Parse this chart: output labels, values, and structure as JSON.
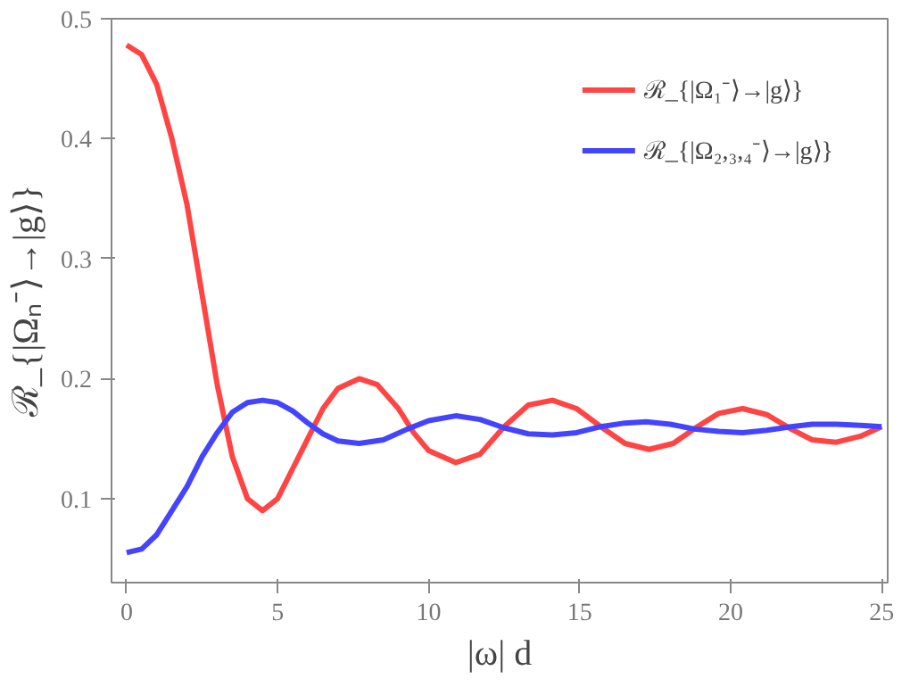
{
  "chart_data": {
    "type": "line",
    "xlabel": "|ω| d",
    "ylabel": "ℛ_{|Ωₙ⁻⟩→|g⟩}",
    "xlim": [
      -0.5,
      25.2
    ],
    "ylim": [
      0.03,
      0.5
    ],
    "xticks": [
      0,
      5,
      10,
      15,
      20,
      25
    ],
    "yticks": [
      0.1,
      0.2,
      0.3,
      0.4,
      0.5
    ],
    "grid": false,
    "legend": "top right",
    "line_style": "solid",
    "marker": "none",
    "series": [
      {
        "name": "ℛ_{|Ω₁⁻⟩→|g⟩}",
        "color": "#ff4444",
        "x": [
          0,
          0.5,
          1,
          1.5,
          2,
          2.5,
          3,
          3.5,
          4,
          4.5,
          5,
          5.5,
          6,
          6.5,
          7,
          7.7,
          8.3,
          9,
          9.5,
          10,
          10.9,
          11.7,
          12.5,
          13.3,
          14.1,
          14.9,
          15.7,
          16.5,
          17.3,
          18.1,
          18.9,
          19.6,
          20.4,
          21.2,
          22,
          22.7,
          23.5,
          24.3,
          25
        ],
        "values": [
          0.478,
          0.47,
          0.445,
          0.4,
          0.345,
          0.27,
          0.195,
          0.135,
          0.1,
          0.09,
          0.1,
          0.125,
          0.15,
          0.175,
          0.192,
          0.2,
          0.195,
          0.175,
          0.155,
          0.14,
          0.13,
          0.137,
          0.16,
          0.178,
          0.182,
          0.175,
          0.16,
          0.146,
          0.141,
          0.146,
          0.16,
          0.171,
          0.175,
          0.17,
          0.158,
          0.149,
          0.147,
          0.152,
          0.16
        ]
      },
      {
        "name": "ℛ_{|Ω₂,₃,₄⁻⟩→|g⟩}",
        "color": "#4444ff",
        "x": [
          0,
          0.5,
          1,
          1.5,
          2,
          2.5,
          3,
          3.5,
          4,
          4.5,
          5,
          5.5,
          6,
          6.5,
          7,
          7.7,
          8.5,
          9.3,
          10,
          10.9,
          11.7,
          12.5,
          13.3,
          14.1,
          14.9,
          15.7,
          16.5,
          17.2,
          18,
          18.8,
          19.6,
          20.4,
          21.2,
          22,
          22.7,
          23.5,
          24.3,
          25
        ],
        "values": [
          0.055,
          0.058,
          0.07,
          0.09,
          0.11,
          0.135,
          0.155,
          0.172,
          0.18,
          0.182,
          0.18,
          0.173,
          0.163,
          0.154,
          0.148,
          0.146,
          0.149,
          0.158,
          0.165,
          0.169,
          0.166,
          0.159,
          0.154,
          0.153,
          0.155,
          0.16,
          0.163,
          0.164,
          0.162,
          0.158,
          0.156,
          0.155,
          0.157,
          0.16,
          0.162,
          0.162,
          0.161,
          0.16
        ]
      }
    ]
  }
}
